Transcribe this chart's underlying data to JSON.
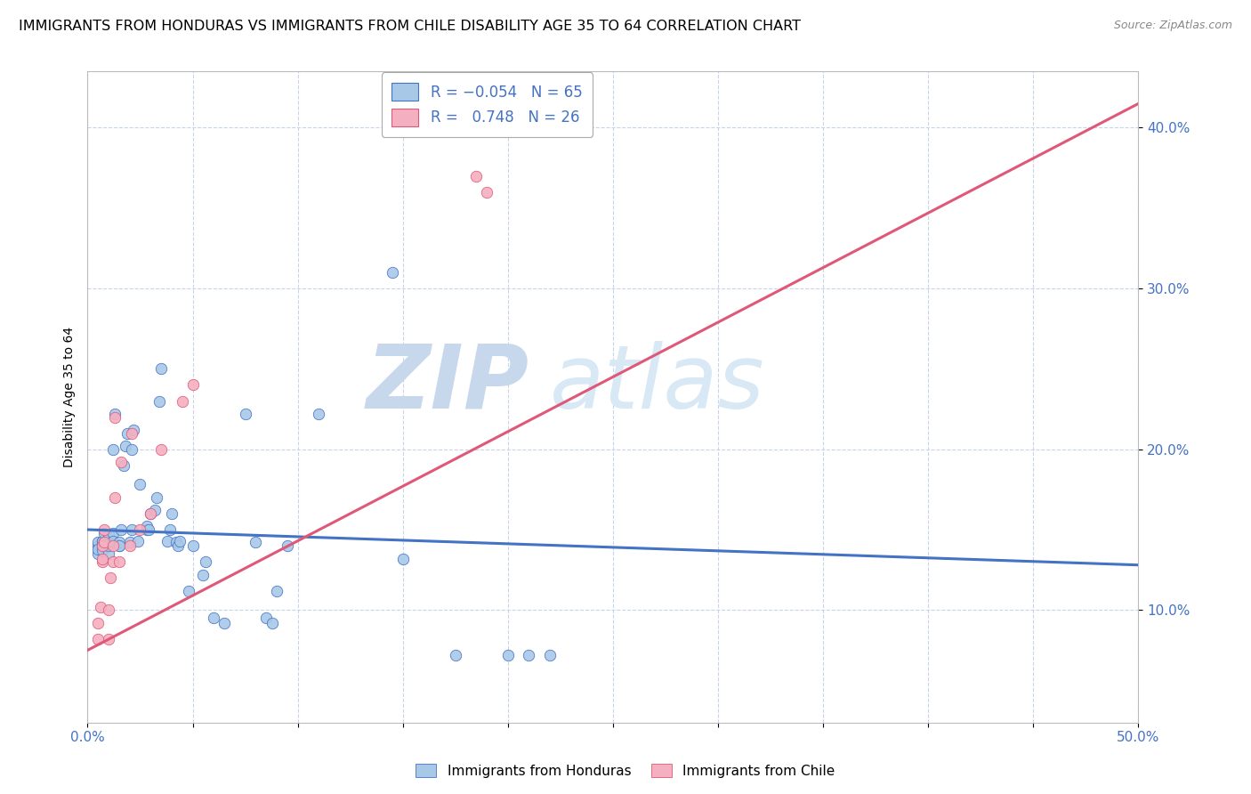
{
  "title": "IMMIGRANTS FROM HONDURAS VS IMMIGRANTS FROM CHILE DISABILITY AGE 35 TO 64 CORRELATION CHART",
  "source": "Source: ZipAtlas.com",
  "ylabel": "Disability Age 35 to 64",
  "ytick_labels": [
    "10.0%",
    "20.0%",
    "30.0%",
    "40.0%"
  ],
  "ytick_values": [
    0.1,
    0.2,
    0.3,
    0.4
  ],
  "xlim": [
    0.0,
    0.5
  ],
  "ylim": [
    0.03,
    0.435
  ],
  "legend_blue_label": "R = −0.054   N = 65",
  "legend_pink_label": "R =   0.748   N = 26",
  "bottom_legend_blue": "Immigrants from Honduras",
  "bottom_legend_pink": "Immigrants from Chile",
  "blue_color": "#a8c8e8",
  "pink_color": "#f4b0c0",
  "blue_edge_color": "#4472c4",
  "pink_edge_color": "#e05878",
  "blue_scatter": [
    [
      0.005,
      0.14
    ],
    [
      0.005,
      0.142
    ],
    [
      0.005,
      0.135
    ],
    [
      0.005,
      0.138
    ],
    [
      0.007,
      0.143
    ],
    [
      0.007,
      0.14
    ],
    [
      0.007,
      0.137
    ],
    [
      0.007,
      0.143
    ],
    [
      0.008,
      0.148
    ],
    [
      0.008,
      0.142
    ],
    [
      0.008,
      0.14
    ],
    [
      0.01,
      0.135
    ],
    [
      0.01,
      0.14
    ],
    [
      0.01,
      0.143
    ],
    [
      0.01,
      0.147
    ],
    [
      0.012,
      0.148
    ],
    [
      0.012,
      0.143
    ],
    [
      0.012,
      0.2
    ],
    [
      0.013,
      0.222
    ],
    [
      0.015,
      0.14
    ],
    [
      0.015,
      0.142
    ],
    [
      0.015,
      0.14
    ],
    [
      0.016,
      0.15
    ],
    [
      0.017,
      0.19
    ],
    [
      0.018,
      0.202
    ],
    [
      0.019,
      0.21
    ],
    [
      0.02,
      0.142
    ],
    [
      0.021,
      0.15
    ],
    [
      0.021,
      0.2
    ],
    [
      0.022,
      0.212
    ],
    [
      0.024,
      0.143
    ],
    [
      0.025,
      0.178
    ],
    [
      0.028,
      0.15
    ],
    [
      0.028,
      0.152
    ],
    [
      0.029,
      0.15
    ],
    [
      0.03,
      0.16
    ],
    [
      0.032,
      0.162
    ],
    [
      0.033,
      0.17
    ],
    [
      0.034,
      0.23
    ],
    [
      0.035,
      0.25
    ],
    [
      0.038,
      0.143
    ],
    [
      0.039,
      0.15
    ],
    [
      0.04,
      0.16
    ],
    [
      0.042,
      0.142
    ],
    [
      0.043,
      0.14
    ],
    [
      0.044,
      0.143
    ],
    [
      0.048,
      0.112
    ],
    [
      0.05,
      0.14
    ],
    [
      0.055,
      0.122
    ],
    [
      0.056,
      0.13
    ],
    [
      0.06,
      0.095
    ],
    [
      0.065,
      0.092
    ],
    [
      0.075,
      0.222
    ],
    [
      0.08,
      0.142
    ],
    [
      0.085,
      0.095
    ],
    [
      0.088,
      0.092
    ],
    [
      0.09,
      0.112
    ],
    [
      0.095,
      0.14
    ],
    [
      0.11,
      0.222
    ],
    [
      0.145,
      0.31
    ],
    [
      0.15,
      0.132
    ],
    [
      0.175,
      0.072
    ],
    [
      0.2,
      0.072
    ],
    [
      0.21,
      0.072
    ],
    [
      0.22,
      0.072
    ]
  ],
  "pink_scatter": [
    [
      0.005,
      0.082
    ],
    [
      0.005,
      0.092
    ],
    [
      0.006,
      0.102
    ],
    [
      0.007,
      0.13
    ],
    [
      0.007,
      0.132
    ],
    [
      0.007,
      0.14
    ],
    [
      0.008,
      0.142
    ],
    [
      0.008,
      0.15
    ],
    [
      0.01,
      0.082
    ],
    [
      0.01,
      0.1
    ],
    [
      0.011,
      0.12
    ],
    [
      0.012,
      0.13
    ],
    [
      0.012,
      0.14
    ],
    [
      0.013,
      0.17
    ],
    [
      0.013,
      0.22
    ],
    [
      0.015,
      0.13
    ],
    [
      0.016,
      0.192
    ],
    [
      0.02,
      0.14
    ],
    [
      0.021,
      0.21
    ],
    [
      0.025,
      0.15
    ],
    [
      0.03,
      0.16
    ],
    [
      0.035,
      0.2
    ],
    [
      0.045,
      0.23
    ],
    [
      0.05,
      0.24
    ],
    [
      0.185,
      0.37
    ],
    [
      0.19,
      0.36
    ]
  ],
  "blue_trendline": [
    [
      0.0,
      0.15
    ],
    [
      0.5,
      0.128
    ]
  ],
  "pink_trendline": [
    [
      0.0,
      0.075
    ],
    [
      0.5,
      0.415
    ]
  ],
  "watermark_zip": "ZIP",
  "watermark_atlas": "atlas",
  "background_color": "#ffffff",
  "grid_color": "#c8d4e8",
  "title_fontsize": 11.5,
  "source_fontsize": 9,
  "axis_label_fontsize": 10,
  "tick_fontsize": 11
}
